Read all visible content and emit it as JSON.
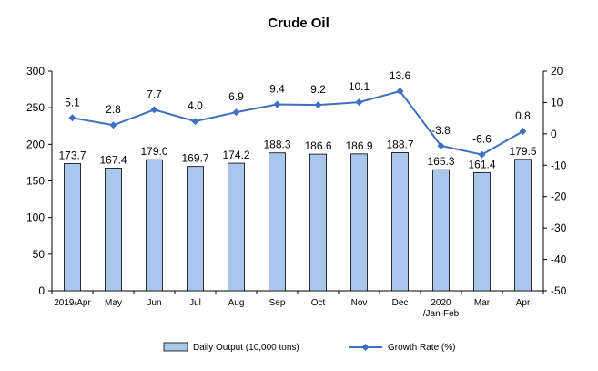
{
  "chart_data": {
    "type": "bar",
    "title": "Crude Oil",
    "categories": [
      "2019/Apr",
      "May",
      "Jun",
      "Jul",
      "Aug",
      "Sep",
      "Oct",
      "Nov",
      "Dec",
      "2020\n/Jan-Feb",
      "Mar",
      "Apr"
    ],
    "series": [
      {
        "name": "Daily Output (10,000 tons)",
        "type": "bar",
        "axis": "left",
        "color": "#a9c6ec",
        "values": [
          173.7,
          167.4,
          179.0,
          169.7,
          174.2,
          188.3,
          186.6,
          186.9,
          188.7,
          165.3,
          161.4,
          179.5
        ],
        "labels": [
          "173.7",
          "167.4",
          "179.0",
          "169.7",
          "174.2",
          "188.3",
          "186.6",
          "186.9",
          "188.7",
          "165.3",
          "161.4",
          "179.5"
        ]
      },
      {
        "name": "Growth Rate (%)",
        "type": "line",
        "axis": "right",
        "color": "#3f6fbf",
        "marker": "diamond",
        "values": [
          5.1,
          2.8,
          7.7,
          4.0,
          6.9,
          9.4,
          9.2,
          10.1,
          13.6,
          -3.8,
          -6.6,
          0.8
        ],
        "labels": [
          "5.1",
          "2.8",
          "7.7",
          "4.0",
          "6.9",
          "9.4",
          "9.2",
          "10.1",
          "13.6",
          "-3.8",
          "-6.6",
          "0.8"
        ]
      }
    ],
    "y_left": {
      "range": [
        0,
        300
      ],
      "ticks": [
        0,
        50,
        100,
        150,
        200,
        250,
        300
      ]
    },
    "y_right": {
      "range": [
        -50,
        20
      ],
      "ticks": [
        -50,
        -40,
        -30,
        -20,
        -10,
        0,
        10,
        20
      ]
    },
    "grid": false,
    "legend": "bottom"
  }
}
